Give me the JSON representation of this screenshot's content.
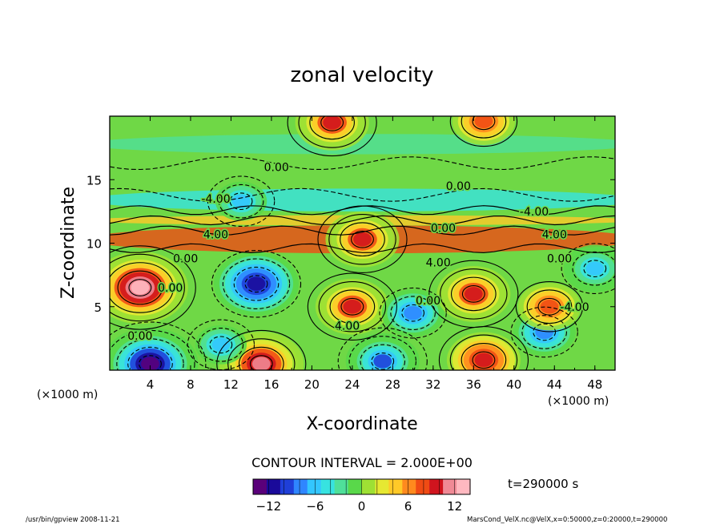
{
  "chart_data": {
    "type": "heatmap",
    "title": "zonal velocity",
    "xlabel": "X-coordinate",
    "ylabel": "Z-coordinate",
    "x_unit_left": "(×1000 m)",
    "x_unit_right": "(×1000 m)",
    "xlim": [
      0,
      50
    ],
    "ylim": [
      0,
      20
    ],
    "x_ticks": [
      "4",
      "8",
      "12",
      "16",
      "20",
      "24",
      "28",
      "32",
      "36",
      "40",
      "44",
      "48"
    ],
    "y_ticks": [
      "5",
      "10",
      "15"
    ],
    "contour_interval_text": "CONTOUR INTERVAL = 2.000E+00",
    "time_text": "t=290000 s",
    "colorbar": {
      "min": -14,
      "max": 14,
      "ticks": [
        "−12",
        "−6",
        "0",
        "6",
        "12"
      ],
      "colors": [
        "#5a007a",
        "#1a0a9a",
        "#1f3fd8",
        "#2f86ff",
        "#33c6ff",
        "#37e3e0",
        "#4fe09a",
        "#59d84a",
        "#9ee034",
        "#e6e832",
        "#ffc928",
        "#ff8a1e",
        "#f04b14",
        "#d0141e",
        "#f08a96",
        "#ffb8c0"
      ]
    },
    "contour_labels": [
      {
        "text": "0.00",
        "x": 16.5,
        "z": 16.0
      },
      {
        "text": "0.00",
        "x": 34.5,
        "z": 14.5
      },
      {
        "text": "-4.00",
        "x": 10.5,
        "z": 13.5
      },
      {
        "text": "-4.00",
        "x": 42.0,
        "z": 12.5
      },
      {
        "text": "0.00",
        "x": 33.0,
        "z": 11.2
      },
      {
        "text": "4.00",
        "x": 10.5,
        "z": 10.7
      },
      {
        "text": "4.00",
        "x": 44.0,
        "z": 10.7
      },
      {
        "text": "0.00",
        "x": 7.5,
        "z": 8.8
      },
      {
        "text": "4.00",
        "x": 32.5,
        "z": 8.5
      },
      {
        "text": "0.00",
        "x": 44.5,
        "z": 8.8
      },
      {
        "text": "0.00",
        "x": 6.0,
        "z": 6.5
      },
      {
        "text": "0.00",
        "x": 31.5,
        "z": 5.5
      },
      {
        "text": "-4.00",
        "x": 46.0,
        "z": 5.0
      },
      {
        "text": "4.00",
        "x": 23.5,
        "z": 3.5
      },
      {
        "text": "0.00",
        "x": 3.0,
        "z": 2.7
      }
    ],
    "features": [
      {
        "x": 3.0,
        "z": 6.5,
        "value": 13
      },
      {
        "x": 14.5,
        "z": 6.8,
        "value": -12
      },
      {
        "x": 4.0,
        "z": 0.5,
        "value": -13
      },
      {
        "x": 15.0,
        "z": 0.5,
        "value": 11
      },
      {
        "x": 24.0,
        "z": 5.0,
        "value": 9
      },
      {
        "x": 30.0,
        "z": 4.5,
        "value": -8
      },
      {
        "x": 36.0,
        "z": 6.0,
        "value": 9
      },
      {
        "x": 43.0,
        "z": 3.0,
        "value": -8
      },
      {
        "x": 43.5,
        "z": 5.0,
        "value": 8
      },
      {
        "x": 37.0,
        "z": 0.8,
        "value": 10
      },
      {
        "x": 25.0,
        "z": 10.3,
        "value": 9
      },
      {
        "x": 13.0,
        "z": 13.3,
        "value": -6
      },
      {
        "x": 22.0,
        "z": 19.5,
        "value": 9
      },
      {
        "x": 37.0,
        "z": 19.6,
        "value": 8
      },
      {
        "x": 27.0,
        "z": 0.7,
        "value": -9
      },
      {
        "x": 48.0,
        "z": 8.0,
        "value": -7
      },
      {
        "x": 11.0,
        "z": 2.0,
        "value": -6
      }
    ]
  },
  "footer": {
    "left": "/usr/bin/gpview   2008-11-21",
    "right": "MarsCond_VelX.nc@VelX,x=0:50000,z=0:20000,t=290000"
  }
}
